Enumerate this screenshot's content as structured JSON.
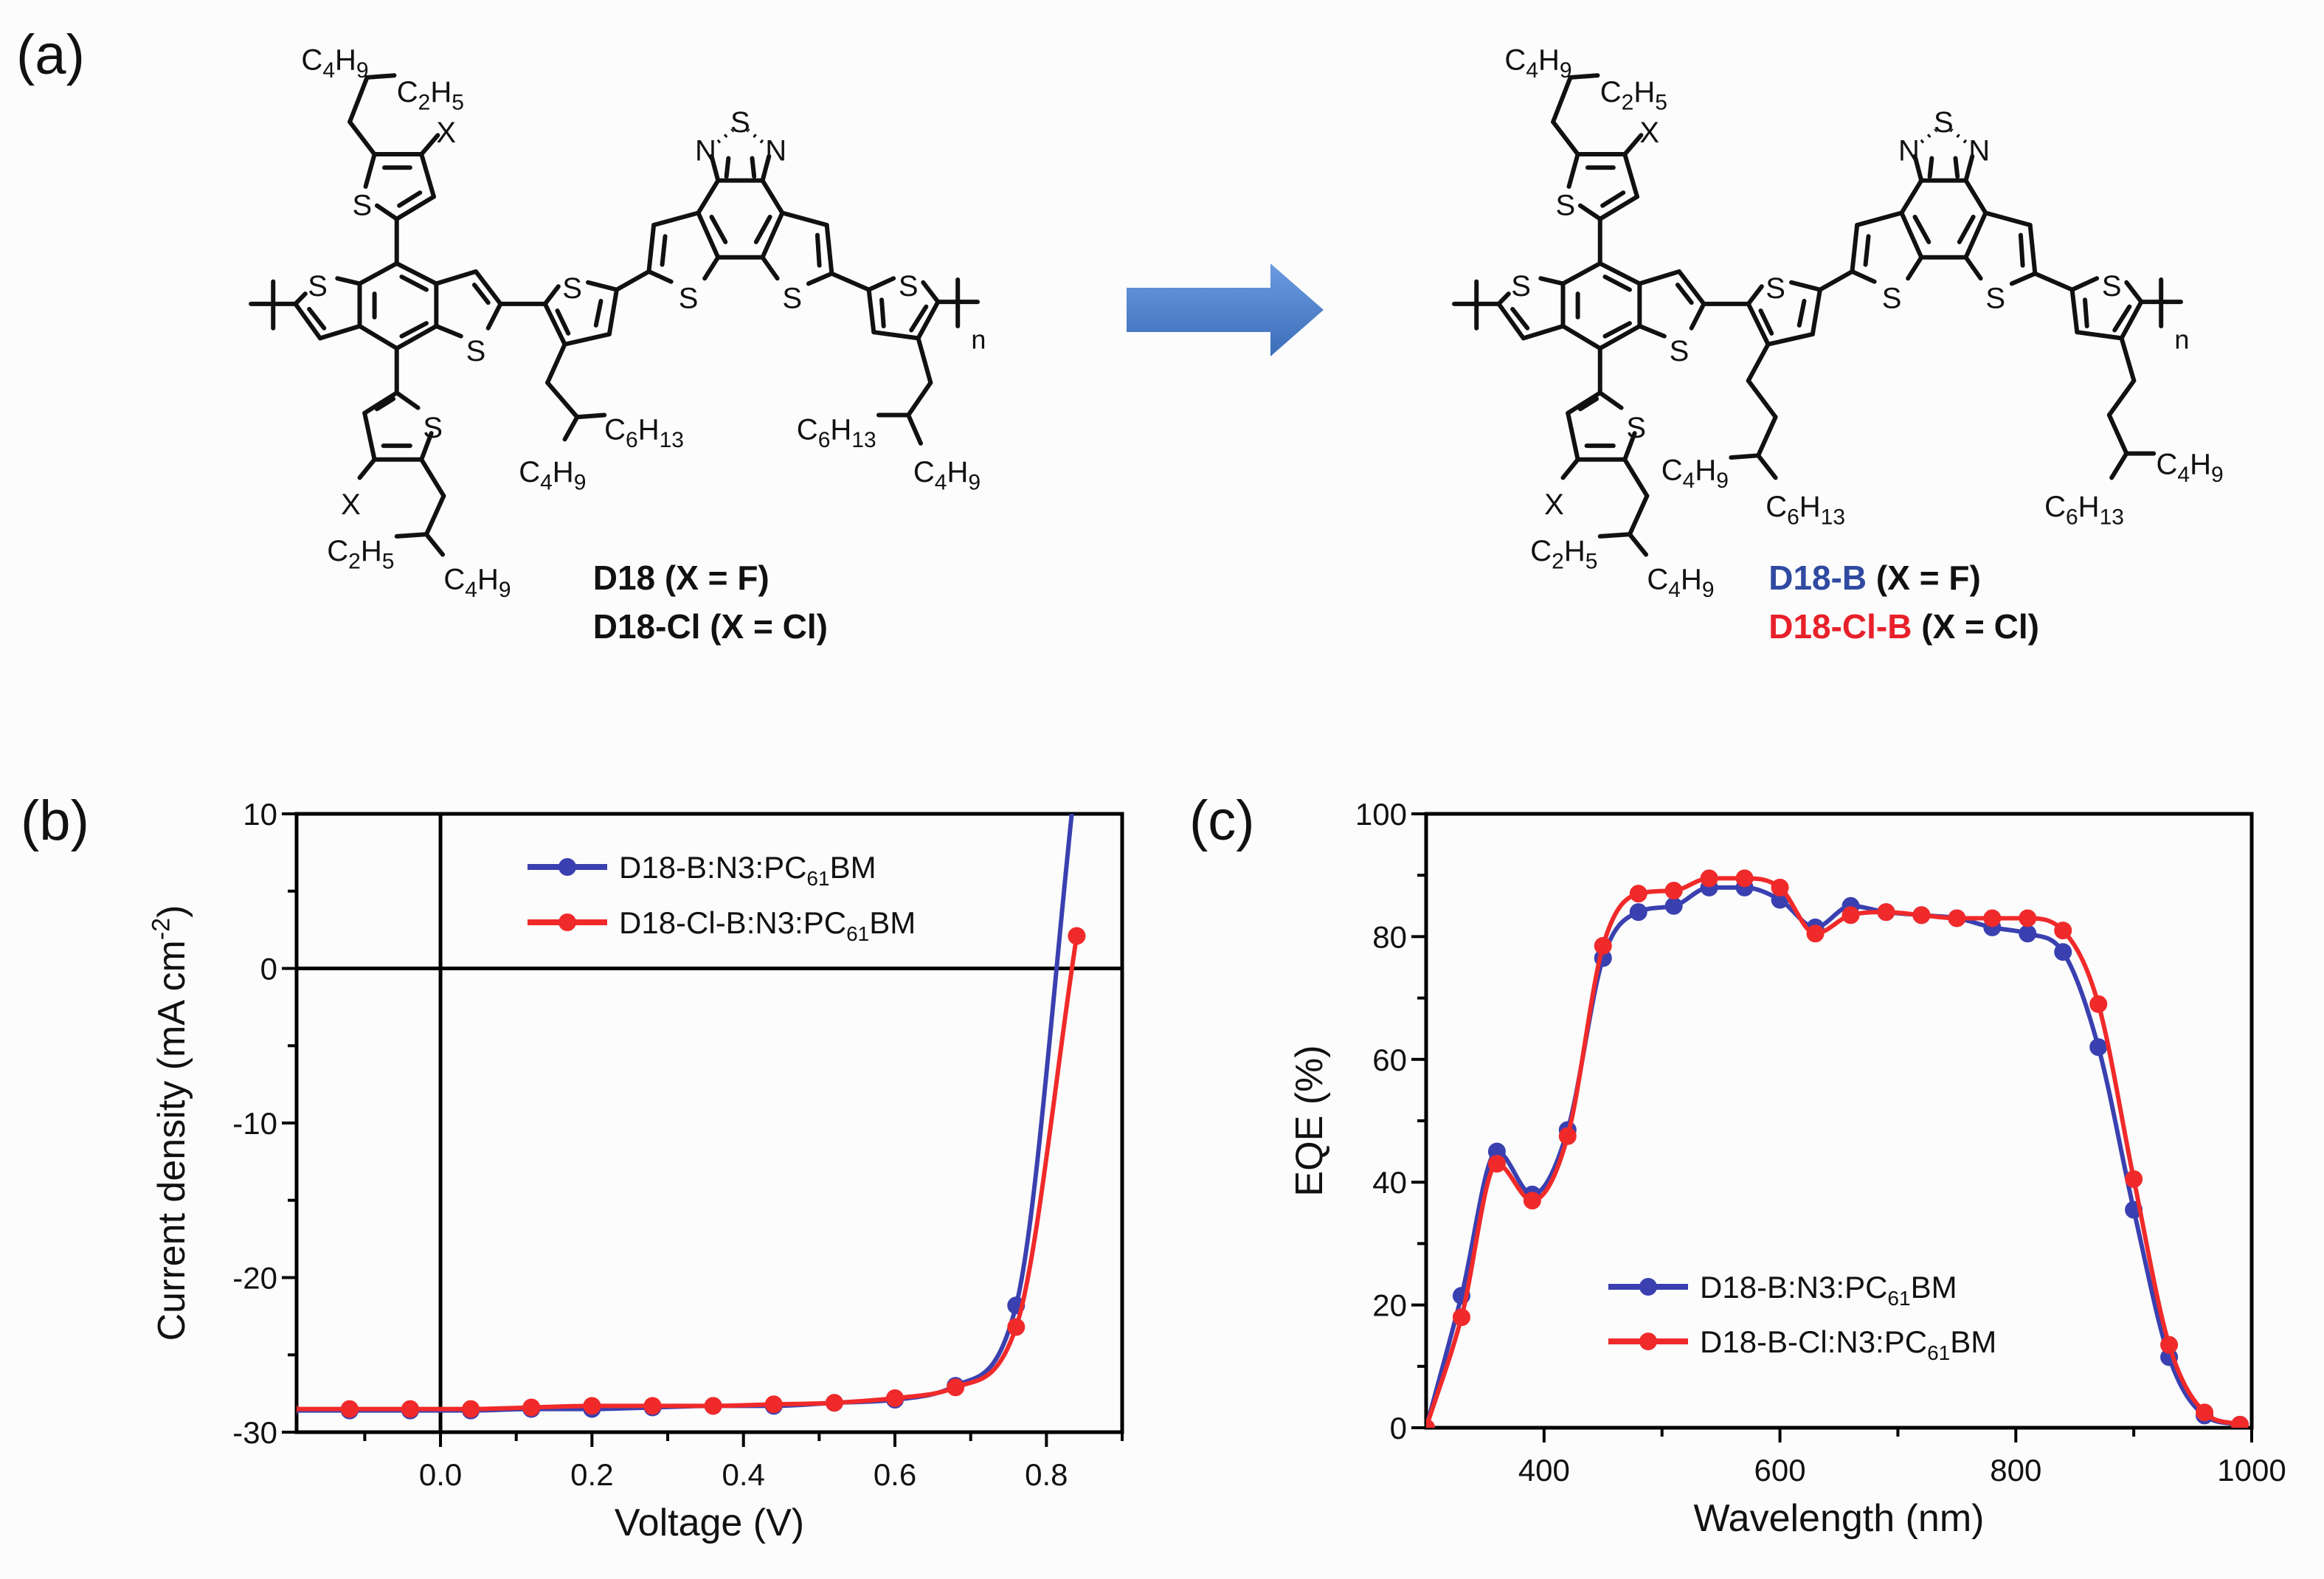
{
  "panels": {
    "a": "(a)",
    "b": "(b)",
    "c": "(c)"
  },
  "scheme": {
    "atoms": {
      "S": "S",
      "N": "N",
      "X": "X",
      "n": "n"
    },
    "substituents": {
      "c4h9": "C4H9",
      "c2h5": "C2H5",
      "c6h13": "C6H13"
    },
    "left_names": [
      {
        "name": "D18",
        "rest": " (X = F)",
        "color": "#111111"
      },
      {
        "name": "D18-Cl",
        "rest": " (X = Cl)",
        "color": "#111111"
      }
    ],
    "right_names": [
      {
        "name": "D18-B",
        "rest": " (X = F)",
        "color": "#2f4aa0"
      },
      {
        "name": "D18-Cl-B",
        "rest": " (X = Cl)",
        "color": "#e8202a"
      }
    ],
    "arrow_color": "#4a80c8"
  },
  "chart_data": [
    {
      "type": "line",
      "panel": "b",
      "xlabel": "Voltage (V)",
      "ylabel": "Current density (mA cm-2)",
      "xlim": [
        -0.19,
        0.9
      ],
      "ylim": [
        -30,
        10
      ],
      "xticks": [
        0.0,
        0.2,
        0.4,
        0.6,
        0.8
      ],
      "xtick_labels": [
        "0.0",
        "0.2",
        "0.4",
        "0.6",
        "0.8"
      ],
      "yticks": [
        10,
        0,
        -10,
        -20,
        -30
      ],
      "ytick_labels": [
        "10",
        "0",
        "-10",
        "-20",
        "-30"
      ],
      "reference_lines": {
        "x": 0,
        "y": 0
      },
      "legend": "top-center",
      "x": [
        -0.2,
        -0.12,
        -0.04,
        0.04,
        0.12,
        0.2,
        0.28,
        0.36,
        0.44,
        0.52,
        0.6,
        0.68,
        0.76,
        0.84
      ],
      "series": [
        {
          "name": "D18-B:N3:PC61BM",
          "color": "#3a40b0",
          "values": [
            -28.6,
            -28.6,
            -28.6,
            -28.6,
            -28.5,
            -28.5,
            -28.4,
            -28.3,
            -28.3,
            -28.1,
            -27.9,
            -27.0,
            -21.8,
            13.0
          ]
        },
        {
          "name": "D18-Cl-B:N3:PC61BM",
          "color": "#f02a2a",
          "values": [
            -28.5,
            -28.5,
            -28.5,
            -28.5,
            -28.4,
            -28.3,
            -28.3,
            -28.3,
            -28.2,
            -28.1,
            -27.8,
            -27.1,
            -23.2,
            2.1
          ]
        }
      ]
    },
    {
      "type": "line",
      "panel": "c",
      "xlabel": "Wavelength (nm)",
      "ylabel": "EQE (%)",
      "xlim": [
        300,
        1000
      ],
      "ylim": [
        0,
        100
      ],
      "xticks": [
        400,
        600,
        800,
        1000
      ],
      "xtick_labels": [
        "400",
        "600",
        "800",
        "1000"
      ],
      "yticks": [
        0,
        20,
        40,
        60,
        80,
        100
      ],
      "ytick_labels": [
        "0",
        "20",
        "40",
        "60",
        "80",
        "100"
      ],
      "legend": "bottom-center",
      "x": [
        300,
        330,
        360,
        390,
        420,
        450,
        480,
        510,
        540,
        570,
        600,
        630,
        660,
        690,
        720,
        750,
        780,
        810,
        840,
        870,
        900,
        930,
        960,
        990
      ],
      "series": [
        {
          "name": "D18-B:N3:PC61BM",
          "color": "#3a40b0",
          "values": [
            0,
            21.5,
            45,
            38,
            48.5,
            76.5,
            84,
            85,
            88,
            88,
            86,
            81.5,
            85,
            84,
            83.5,
            83,
            81.5,
            80.5,
            77.5,
            62,
            35.5,
            11.5,
            2,
            0.5
          ]
        },
        {
          "name": "D18-B-Cl:N3:PC61BM",
          "color": "#f02a2a",
          "values": [
            0,
            18,
            43,
            37,
            47.5,
            78.5,
            87,
            87.5,
            89.5,
            89.5,
            88,
            80.5,
            83.5,
            84,
            83.5,
            83,
            83,
            83,
            81,
            69,
            40.5,
            13.5,
            2.5,
            0.5
          ]
        }
      ]
    }
  ]
}
